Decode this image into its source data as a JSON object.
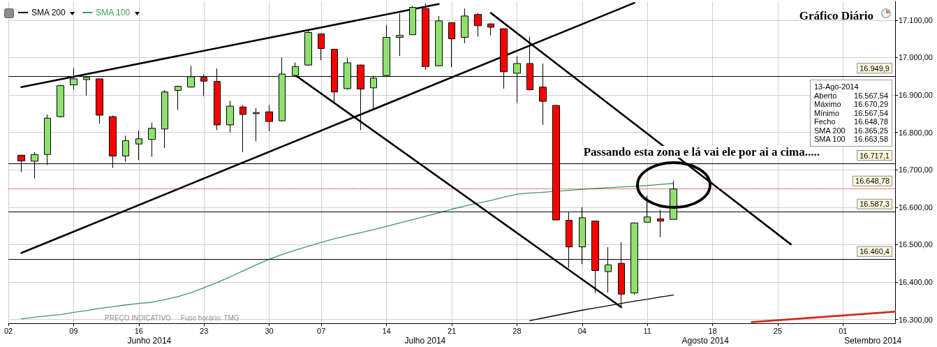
{
  "chart_data": {
    "type": "candlestick",
    "title": "Gráfico Diário",
    "categories": [
      "02",
      null,
      null,
      null,
      null,
      "09",
      null,
      null,
      null,
      null,
      "16",
      null,
      null,
      null,
      null,
      "23",
      null,
      null,
      null,
      null,
      "30",
      null,
      null,
      null,
      "07",
      null,
      null,
      null,
      null,
      "14",
      null,
      null,
      null,
      null,
      "21",
      null,
      null,
      null,
      null,
      "28",
      null,
      null,
      null,
      null,
      "04",
      null,
      null,
      null,
      null,
      "11",
      null,
      null,
      null,
      null,
      "18",
      null,
      null,
      null,
      null,
      "25",
      null,
      null,
      null,
      null,
      "01",
      null,
      null,
      null,
      null
    ],
    "ohlc": [
      null,
      [
        16739,
        16740,
        16694,
        16724
      ],
      [
        16723,
        16747,
        16677,
        16741
      ],
      [
        16741,
        16848,
        16713,
        16838
      ],
      [
        16842,
        16927,
        16840,
        16925
      ],
      [
        16927,
        16972,
        16914,
        16943
      ],
      [
        16941,
        16947,
        16898,
        16947
      ],
      [
        16943,
        16943,
        16823,
        16846
      ],
      [
        16842,
        16845,
        16705,
        16737
      ],
      [
        16737,
        16791,
        16721,
        16778
      ],
      [
        16769,
        16805,
        16726,
        16783
      ],
      [
        16781,
        16826,
        16735,
        16811
      ],
      [
        16809,
        16913,
        16758,
        16908
      ],
      [
        16912,
        16925,
        16860,
        16923
      ],
      [
        16921,
        16978,
        16920,
        16949
      ],
      [
        16947,
        16955,
        16897,
        16937
      ],
      [
        16936,
        16971,
        16806,
        16820
      ],
      [
        16820,
        16885,
        16800,
        16870
      ],
      [
        16868,
        16873,
        16747,
        16848
      ],
      [
        16850,
        16865,
        16776,
        16853
      ],
      [
        16855,
        16873,
        16803,
        16829
      ],
      [
        16831,
        17000,
        16829,
        16956
      ],
      [
        16952,
        16987,
        16950,
        16976
      ],
      [
        16980,
        17074,
        16978,
        17067
      ],
      [
        17063,
        17064,
        16993,
        17024
      ],
      [
        17022,
        17023,
        16880,
        16908
      ],
      [
        16917,
        17000,
        16914,
        16986
      ],
      [
        16980,
        16981,
        16806,
        16916
      ],
      [
        16919,
        16951,
        16862,
        16945
      ],
      [
        16952,
        17087,
        16950,
        17054
      ],
      [
        17054,
        17118,
        17004,
        17059
      ],
      [
        17061,
        17138,
        17060,
        17134
      ],
      [
        17131,
        17145,
        16967,
        16976
      ],
      [
        16978,
        17111,
        16977,
        17098
      ],
      [
        17093,
        17094,
        16974,
        17050
      ],
      [
        17054,
        17131,
        17038,
        17111
      ],
      [
        17115,
        17119,
        17056,
        17085
      ],
      [
        17090,
        17091,
        17059,
        17081
      ],
      [
        17077,
        17078,
        16917,
        16962
      ],
      [
        16958,
        17003,
        16879,
        16984
      ],
      [
        16984,
        17056,
        16912,
        16914
      ],
      [
        16921,
        16984,
        16820,
        16883
      ],
      [
        16872,
        16873,
        16565,
        16566
      ],
      [
        16565,
        16588,
        16438,
        16494
      ],
      [
        16494,
        16600,
        16448,
        16572
      ],
      [
        16563,
        16564,
        16370,
        16431
      ],
      [
        16428,
        16493,
        16372,
        16446
      ],
      [
        16450,
        16506,
        16335,
        16368
      ],
      [
        16371,
        16559,
        16366,
        16558
      ],
      [
        16560,
        16631,
        16559,
        16574
      ],
      [
        16569,
        16593,
        16520,
        16563
      ],
      [
        16567.54,
        16670.29,
        16567.54,
        16648.78
      ],
      null,
      null,
      null,
      null,
      null,
      null,
      null,
      null,
      null,
      null,
      null,
      null,
      null,
      null,
      null,
      null,
      null
    ],
    "colors": [
      null,
      "#ff0000",
      "#90e070",
      "#90e070",
      "#90e070",
      "#90e070",
      "#90e070",
      "#ff0000",
      "#ff0000",
      "#90e070",
      "#90e070",
      "#90e070",
      "#90e070",
      "#90e070",
      "#90e070",
      "#ff0000",
      "#ff0000",
      "#90e070",
      "#ff0000",
      "#90e070",
      "#ff0000",
      "#90e070",
      "#90e070",
      "#90e070",
      "#ff0000",
      "#ff0000",
      "#90e070",
      "#ff0000",
      "#90e070",
      "#90e070",
      "#90e070",
      "#90e070",
      "#ff0000",
      "#90e070",
      "#ff0000",
      "#90e070",
      "#ff0000",
      "#ff0000",
      "#ff0000",
      "#90e070",
      "#ff0000",
      "#ff0000",
      "#ff0000",
      "#ff0000",
      "#90e070",
      "#ff0000",
      "#90e070",
      "#ff0000",
      "#90e070",
      "#90e070",
      "#ff0000",
      "#90e070",
      null,
      null,
      null,
      null,
      null,
      null,
      null,
      null,
      null,
      null,
      null,
      null,
      null,
      null,
      null,
      null,
      null
    ],
    "series": [
      {
        "type": "line",
        "name": "SMA 200",
        "color": "#000000",
        "values": [
          null,
          null,
          null,
          null,
          null,
          null,
          null,
          null,
          null,
          null,
          null,
          null,
          null,
          null,
          null,
          null,
          null,
          null,
          null,
          null,
          null,
          null,
          null,
          null,
          null,
          null,
          null,
          null,
          null,
          null,
          null,
          null,
          null,
          null,
          null,
          null,
          null,
          null,
          null,
          null,
          16297,
          16304,
          16311,
          16318,
          16325,
          16331,
          16337,
          16343,
          16349,
          16354,
          16360,
          16365.25,
          null,
          null,
          null,
          null,
          null,
          null,
          null,
          null,
          null,
          null,
          null,
          null,
          null,
          null,
          null,
          null,
          null
        ]
      },
      {
        "type": "line",
        "name": "SMA 100",
        "color": "#3a9a5c",
        "values": [
          null,
          16302,
          16306,
          16310,
          16313,
          16319,
          16324,
          16330,
          16334,
          16339,
          16343,
          16346,
          16353,
          16361,
          16372,
          16385,
          16399,
          16414,
          16430,
          16446,
          16461,
          16474,
          16485,
          16496,
          16506,
          16516,
          16524,
          16532,
          16540,
          16549,
          16558,
          16567,
          16576,
          16585,
          16595,
          16603,
          16611,
          16618,
          16627,
          16635,
          16638,
          16640,
          null,
          16645,
          16648,
          16650,
          16652,
          16654,
          16656,
          16658,
          16661,
          16663.58,
          null,
          null,
          null,
          null,
          null,
          null,
          null,
          null,
          null,
          null,
          null,
          null,
          null,
          null,
          null,
          null,
          null
        ]
      },
      {
        "type": "line",
        "color": "#000000",
        "values": [
          null,
          16921,
          null,
          null,
          null,
          null,
          null,
          null,
          null,
          null,
          null,
          null,
          null,
          null,
          null,
          null,
          null,
          null,
          null,
          null,
          null,
          null,
          null,
          null,
          null,
          null,
          null,
          null,
          null,
          null,
          null,
          null,
          null,
          17143,
          null,
          null,
          null,
          null,
          null,
          null,
          null,
          null,
          null,
          null,
          null,
          null,
          null,
          null,
          null,
          null,
          null,
          null,
          null,
          null,
          null,
          null,
          null,
          null,
          null,
          null,
          null,
          null,
          null,
          null,
          null,
          null,
          null,
          null,
          null
        ]
      },
      {
        "type": "line",
        "color": "#000000",
        "values": [
          null,
          16478,
          null,
          null,
          null,
          null,
          null,
          null,
          null,
          null,
          null,
          null,
          null,
          null,
          null,
          null,
          null,
          null,
          null,
          null,
          null,
          null,
          null,
          null,
          null,
          null,
          null,
          null,
          null,
          null,
          null,
          null,
          null,
          null,
          null,
          null,
          null,
          null,
          null,
          null,
          null,
          null,
          null,
          null,
          null,
          null,
          null,
          null,
          17146,
          null,
          null,
          null,
          null,
          null,
          null,
          null,
          null,
          null,
          null,
          null,
          null,
          null,
          null,
          null,
          null,
          null,
          null,
          null,
          null
        ]
      },
      {
        "type": "line",
        "color": "#000000",
        "values": [
          null,
          null,
          null,
          null,
          null,
          null,
          null,
          null,
          null,
          null,
          null,
          null,
          null,
          null,
          null,
          null,
          null,
          null,
          null,
          null,
          null,
          null,
          16953,
          null,
          null,
          null,
          null,
          null,
          null,
          null,
          null,
          null,
          null,
          null,
          null,
          null,
          null,
          null,
          null,
          null,
          null,
          null,
          null,
          null,
          null,
          null,
          null,
          16333,
          null,
          null,
          null,
          null,
          null,
          null,
          null,
          null,
          null,
          null,
          null,
          null,
          null,
          null,
          null,
          null,
          null,
          null,
          null,
          null,
          null
        ]
      },
      {
        "type": "line",
        "color": "#000000",
        "values": [
          null,
          null,
          null,
          null,
          null,
          null,
          null,
          null,
          null,
          null,
          null,
          null,
          null,
          null,
          null,
          null,
          null,
          null,
          null,
          null,
          null,
          null,
          null,
          null,
          null,
          null,
          null,
          null,
          null,
          null,
          null,
          null,
          null,
          null,
          null,
          null,
          null,
          17119,
          null,
          null,
          null,
          null,
          null,
          null,
          null,
          null,
          null,
          null,
          null,
          null,
          null,
          null,
          null,
          null,
          null,
          null,
          null,
          null,
          null,
          null,
          16501,
          null,
          null,
          null,
          null,
          null,
          null,
          null,
          null
        ]
      },
      {
        "type": "line",
        "color": "#d42a1e",
        "values": [
          null,
          null,
          null,
          null,
          null,
          null,
          null,
          null,
          null,
          null,
          null,
          null,
          null,
          null,
          null,
          null,
          null,
          null,
          null,
          null,
          null,
          null,
          null,
          null,
          null,
          null,
          null,
          null,
          null,
          null,
          null,
          null,
          null,
          null,
          null,
          null,
          null,
          null,
          null,
          null,
          null,
          null,
          null,
          null,
          null,
          null,
          null,
          null,
          null,
          null,
          null,
          null,
          null,
          null,
          null,
          null,
          null,
          16293,
          null,
          null,
          null,
          null,
          null,
          null,
          null,
          null,
          null,
          null,
          16321
        ]
      }
    ],
    "ylim": [
      16290,
      17150
    ],
    "yticks": [
      {
        "value": 16300,
        "label": "16.300,00"
      },
      {
        "value": 16400,
        "label": "16.400,00"
      },
      {
        "value": 16500,
        "label": "16.500,00"
      },
      {
        "value": 16600,
        "label": "16.600,00"
      },
      {
        "value": 16700,
        "label": "16.700,00"
      },
      {
        "value": 16800,
        "label": "16.800,00"
      },
      {
        "value": 16900,
        "label": "16.900,00"
      },
      {
        "value": 17000,
        "label": "17.000,00"
      },
      {
        "value": 17100,
        "label": "17.100,00"
      }
    ],
    "ref_lines": [
      {
        "axis": "y",
        "value": 16949.9,
        "label": "16.949,9",
        "color": "#000000"
      },
      {
        "axis": "y",
        "value": 16717.1,
        "label": "16.717,1",
        "color": "#000000"
      },
      {
        "axis": "y",
        "value": 16648.78,
        "label": "16.648,78",
        "color": "#c00000",
        "line_style": "dotted"
      },
      {
        "axis": "y",
        "value": 16587.3,
        "label": "16.587,3",
        "color": "#000000"
      },
      {
        "axis": "y",
        "value": 16460.4,
        "label": "16.460,4",
        "color": "#000000"
      }
    ],
    "annotations": [
      "Passando esta zona e lá vai ele por ai a cima.....",
      "Junho 2014",
      "Julho 2014",
      "Agosto 2014",
      "Setembro 2014",
      "PREÇO INDICATIVO",
      "Fuso horário: TMG",
      "13-Ago-2014",
      "Aberto 16.567,54",
      "Máximo 16.670,29",
      "Mínimo 16.567,54",
      "Fecho 16.648,78",
      "SMA 200 16.365,25",
      "SMA 100 16.663,58"
    ],
    "grid": true,
    "legend": "top left"
  }
}
